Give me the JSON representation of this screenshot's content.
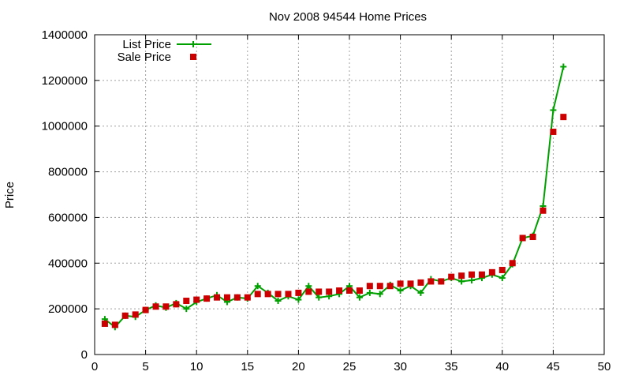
{
  "chart_data": {
    "type": "line",
    "title": "Nov 2008 94544 Home Prices",
    "xlabel": "",
    "ylabel": "Price",
    "xlim": [
      0,
      50
    ],
    "ylim": [
      0,
      1400000
    ],
    "xticks": [
      0,
      5,
      10,
      15,
      20,
      25,
      30,
      35,
      40,
      45,
      50
    ],
    "yticks": [
      0,
      200000,
      400000,
      600000,
      800000,
      1000000,
      1200000,
      1400000
    ],
    "grid": true,
    "legend": "top-left",
    "series": [
      {
        "name": "List Price",
        "style": "line+cross",
        "color": "#00a000",
        "x": [
          1,
          2,
          3,
          4,
          5,
          6,
          7,
          8,
          9,
          10,
          11,
          12,
          13,
          14,
          15,
          16,
          17,
          18,
          19,
          20,
          21,
          22,
          23,
          24,
          25,
          26,
          27,
          28,
          29,
          30,
          31,
          32,
          33,
          34,
          35,
          36,
          37,
          38,
          39,
          40,
          41,
          42,
          43,
          44,
          45,
          46
        ],
        "y": [
          155000,
          120000,
          170000,
          165000,
          195000,
          215000,
          205000,
          225000,
          200000,
          230000,
          245000,
          260000,
          230000,
          250000,
          245000,
          300000,
          270000,
          235000,
          255000,
          240000,
          300000,
          250000,
          255000,
          265000,
          300000,
          250000,
          270000,
          265000,
          305000,
          280000,
          300000,
          270000,
          330000,
          320000,
          335000,
          320000,
          325000,
          335000,
          350000,
          335000,
          395000,
          510000,
          520000,
          650000,
          1070000,
          1260000
        ]
      },
      {
        "name": "Sale Price",
        "style": "square",
        "color": "#cc0000",
        "x": [
          1,
          2,
          3,
          4,
          5,
          6,
          7,
          8,
          9,
          10,
          11,
          12,
          13,
          14,
          15,
          16,
          17,
          18,
          19,
          20,
          21,
          22,
          23,
          24,
          25,
          26,
          27,
          28,
          29,
          30,
          31,
          32,
          33,
          34,
          35,
          36,
          37,
          38,
          39,
          40,
          41,
          42,
          43,
          44,
          45,
          46
        ],
        "y": [
          135000,
          130000,
          170000,
          175000,
          195000,
          210000,
          210000,
          220000,
          235000,
          240000,
          245000,
          250000,
          250000,
          250000,
          250000,
          265000,
          265000,
          265000,
          265000,
          270000,
          275000,
          275000,
          275000,
          280000,
          280000,
          280000,
          300000,
          300000,
          300000,
          310000,
          310000,
          315000,
          320000,
          320000,
          340000,
          345000,
          350000,
          350000,
          360000,
          370000,
          400000,
          510000,
          515000,
          630000,
          975000,
          1040000
        ]
      }
    ]
  }
}
